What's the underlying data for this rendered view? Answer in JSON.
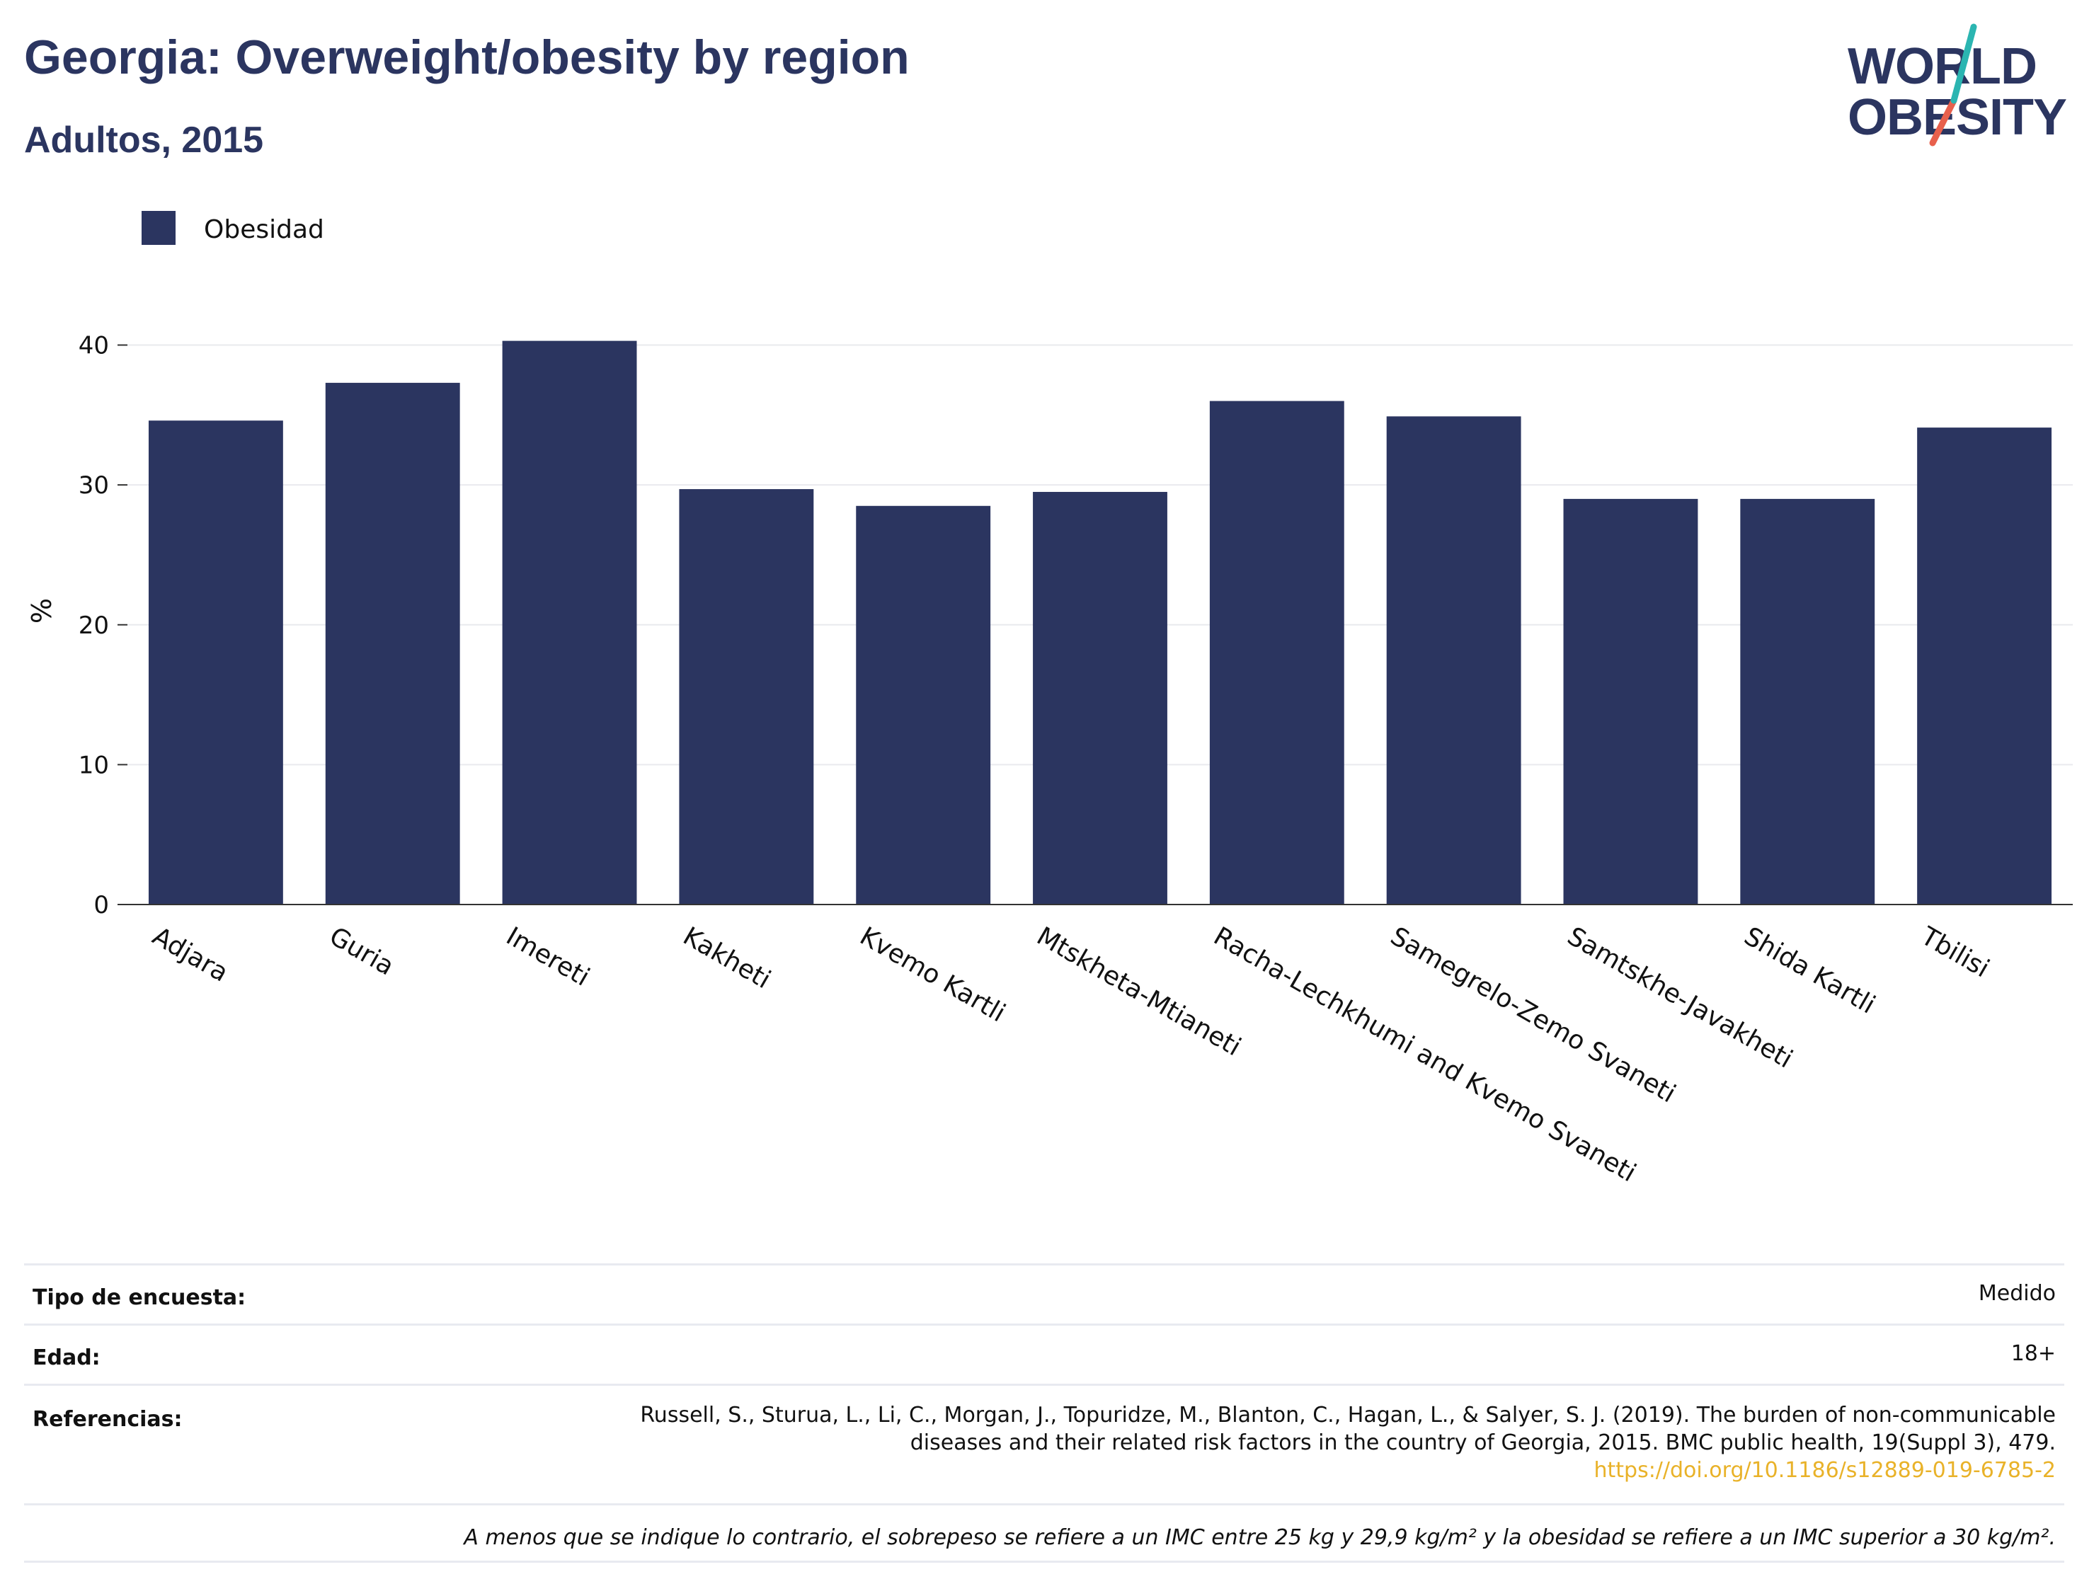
{
  "header": {
    "title": "Georgia: Overweight/obesity by region",
    "subtitle": "Adultos, 2015"
  },
  "logo": {
    "line1": "WORLD",
    "line2": "OBESITY",
    "colors": {
      "text": "#2b3560",
      "slash_top": "#2bb5b1",
      "slash_bottom": "#e8604c"
    }
  },
  "chart_data": {
    "type": "bar",
    "categories": [
      "Adjara",
      "Guria",
      "Imereti",
      "Kakheti",
      "Kvemo Kartli",
      "Mtskheta-Mtianeti",
      "Racha-Lechkhumi and Kvemo Svaneti",
      "Samegrelo-Zemo Svaneti",
      "Samtskhe-Javakheti",
      "Shida Kartli",
      "Tbilisi"
    ],
    "series": [
      {
        "name": "Obesidad",
        "color": "#2b3560",
        "values": [
          34.6,
          37.3,
          40.3,
          29.7,
          28.5,
          29.5,
          36.0,
          34.9,
          29.0,
          29.0,
          34.1
        ]
      }
    ],
    "ylabel": "%",
    "ylim": [
      0,
      42
    ],
    "yticks": [
      "0",
      "10",
      "20",
      "30",
      "40"
    ],
    "grid": true,
    "legend": "top-left"
  },
  "meta": {
    "survey_label": "Tipo de encuesta:",
    "survey_value": "Medido",
    "age_label": "Edad:",
    "age_value": "18+",
    "refs_label": "Referencias:",
    "refs_line1": "Russell, S., Sturua, L., Li, C., Morgan, J., Topuridze, M., Blanton, C., Hagan, L., & Salyer, S. J. (2019). The burden of non-communicable",
    "refs_line2": "diseases and their related risk factors in the country of Georgia, 2015. BMC public health, 19(Suppl 3), 479.",
    "refs_link": "https://doi.org/10.1186/s12889-019-6785-2",
    "note": "A menos que se indique lo contrario, el sobrepeso se refiere a un IMC entre 25 kg y 29,9 kg/m² y la obesidad se refiere a un IMC superior a 30 kg/m²."
  }
}
